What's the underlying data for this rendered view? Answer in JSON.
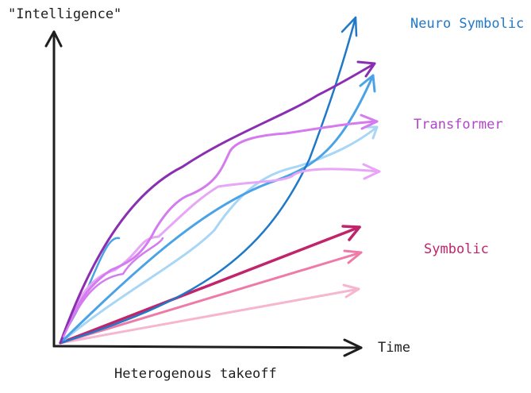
{
  "axes": {
    "y_label": "\"Intelligence\"",
    "x_label": "Time",
    "caption": "Heterogenous takeoff"
  },
  "groups": {
    "neuro_symbolic": {
      "label": "Neuro Symbolic",
      "color": "#1f78c8"
    },
    "transformer": {
      "label": "Transformer",
      "color": "#b145c9"
    },
    "symbolic": {
      "label": "Symbolic",
      "color": "#c0246a"
    }
  },
  "colors": {
    "axis": "#1e1e1e",
    "neuro_dark": "#1f78c8",
    "neuro_mid": "#4aa3e6",
    "neuro_light": "#a8d6f7",
    "transformer_dark": "#8a2fb2",
    "transformer_mid": "#d37bef",
    "transformer_light": "#e7a6f6",
    "symbolic_dark": "#c0246a",
    "symbolic_mid": "#ee7aa8",
    "symbolic_light": "#f6b6cf"
  }
}
